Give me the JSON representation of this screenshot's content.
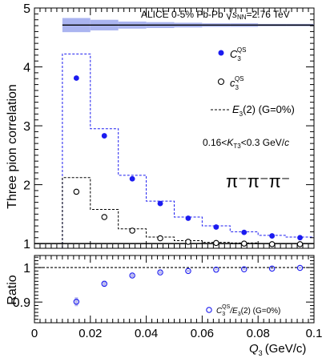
{
  "header": {
    "experiment": "ALICE 0-5% Pb-Pb",
    "energy_prefix": "s",
    "energy_sub": "NN",
    "energy_suffix": "=2.76 TeV"
  },
  "labels": {
    "top_ylabel": "Three pion correlation",
    "bottom_ylabel": "Ratio",
    "xlabel_q": "Q",
    "xlabel_q_sub": "3",
    "xlabel_unit": "(GeV/c)",
    "kt_range_pre": "0.16<",
    "kt_sym": "K",
    "kt_sub": "T3",
    "kt_range_post": "<0.3 GeV/",
    "kt_c": "c",
    "pions": "π⁻π⁻π⁻"
  },
  "legend_top": [
    {
      "base": "C",
      "sub": "3",
      "sup": "QS",
      "marker": "filled-circle"
    },
    {
      "base": "c",
      "sub": "3",
      "sup": "QS",
      "marker": "open-circle"
    },
    {
      "pre": "",
      "base": "E",
      "sub": "3",
      "post": "(2) (G=0%)",
      "marker": "dashed-line"
    }
  ],
  "legend_bottom": {
    "base": "C",
    "sub": "3",
    "sup": "QS",
    "mid": "/E",
    "sub2": "3",
    "post": "(2) (G=0%)"
  },
  "colors": {
    "blue": "#1b1bf0",
    "band": "#aab4f0",
    "black": "#000000"
  },
  "chart_data": [
    {
      "type": "scatter",
      "xlim": [
        0,
        0.1
      ],
      "ylim": [
        0.92,
        5
      ],
      "y_ticks": [
        "1",
        "2",
        "3",
        "4",
        "5"
      ],
      "bin_edges": [
        0.01,
        0.02,
        0.03,
        0.04,
        0.05,
        0.06,
        0.07,
        0.08,
        0.09,
        0.1
      ],
      "x": [
        0.015,
        0.025,
        0.035,
        0.045,
        0.055,
        0.065,
        0.075,
        0.085,
        0.095
      ],
      "series": [
        {
          "name": "C3 QS",
          "marker": "filled-circle",
          "values": [
            3.81,
            2.83,
            2.1,
            1.68,
            1.43,
            1.28,
            1.19,
            1.13,
            1.1
          ]
        },
        {
          "name": "c3 QS",
          "marker": "open-circle",
          "values": [
            1.88,
            1.45,
            1.22,
            1.09,
            1.03,
            1.01,
            1.0,
            0.99,
            0.99
          ]
        },
        {
          "name": "E3(2) (G=0%) blue",
          "style": "dashed-step",
          "values": [
            4.22,
            2.95,
            2.16,
            1.72,
            1.45,
            1.3,
            1.2,
            1.14,
            1.11
          ]
        },
        {
          "name": "E3(2) (G=0%) black",
          "style": "dashed-step",
          "values": [
            2.12,
            1.58,
            1.25,
            1.11,
            1.05,
            1.02,
            1.01,
            1.0,
            1.0
          ]
        }
      ],
      "systematic_band": {
        "center": 4.71,
        "half_width": [
          0.12,
          0.09,
          0.06,
          0.05,
          0.04,
          0.03,
          0.03,
          0.02,
          0.02
        ]
      },
      "reference_line": 1
    },
    {
      "type": "scatter",
      "xlim": [
        0,
        0.1
      ],
      "ylim": [
        0.84,
        1.035
      ],
      "y_ticks": [
        "0.9",
        "1"
      ],
      "x_ticks": [
        "0",
        "0.02",
        "0.04",
        "0.06",
        "0.08",
        "0.1"
      ],
      "x": [
        0.015,
        0.025,
        0.035,
        0.045,
        0.055,
        0.065,
        0.075,
        0.085,
        0.095
      ],
      "series": [
        {
          "name": "C3 QS / E3(2) (G=0%)",
          "marker": "open-circle",
          "values": [
            0.901,
            0.953,
            0.977,
            0.986,
            0.99,
            0.994,
            0.995,
            0.997,
            0.999
          ],
          "errors": [
            0.013,
            0.009,
            0.005,
            0.004,
            0.003,
            0.002,
            0.002,
            0.002,
            0.002
          ]
        }
      ],
      "reference_line": 1
    }
  ]
}
